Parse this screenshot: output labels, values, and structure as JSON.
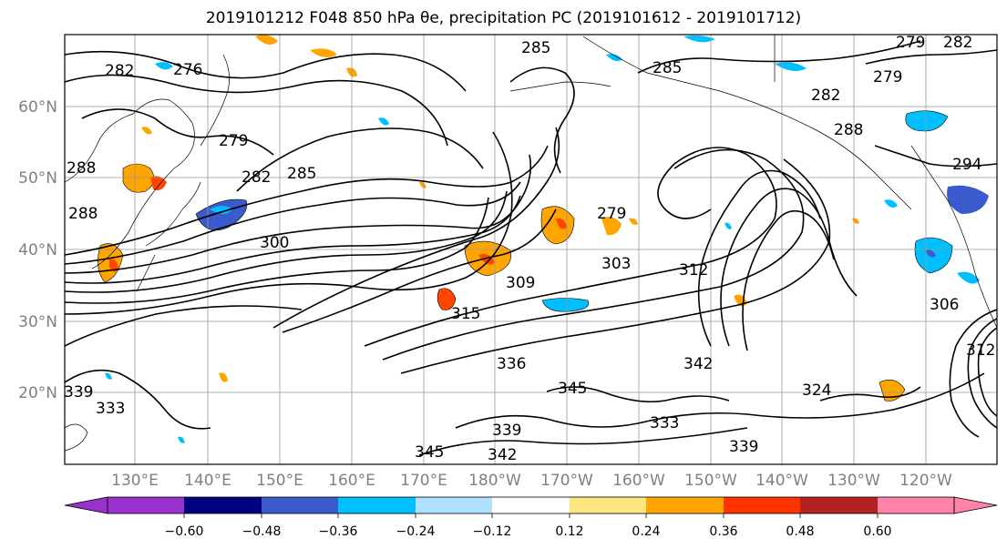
{
  "title": "2019101212 F048 850 hPa θe, precipitation PC (2019101612 - 2019101712)",
  "map": {
    "lat_labels": [
      "60°N",
      "50°N",
      "40°N",
      "30°N",
      "20°N"
    ],
    "lon_labels": [
      "130°E",
      "140°E",
      "150°E",
      "160°E",
      "170°E",
      "180°W",
      "170°W",
      "160°W",
      "150°W",
      "140°W",
      "130°W",
      "120°W"
    ],
    "contour_labels": [
      "282",
      "276",
      "285",
      "285",
      "279",
      "279",
      "282",
      "288",
      "294",
      "288",
      "288",
      "279",
      "282",
      "285",
      "300",
      "279",
      "303",
      "309",
      "315",
      "312",
      "336",
      "345",
      "342",
      "333",
      "324",
      "339",
      "339",
      "345",
      "342",
      "339",
      "333",
      "306",
      "312",
      "282"
    ],
    "fill_colors": {
      "light_blue": "#87cefa",
      "blue": "#00bfff",
      "dark_blue": "#3b5bcc",
      "yellow": "#ffe680",
      "orange": "#ffa500",
      "red_orange": "#ff4500"
    }
  },
  "colorbar": {
    "ticks": [
      "−0.60",
      "−0.48",
      "−0.36",
      "−0.24",
      "−0.12",
      "0.12",
      "0.24",
      "0.36",
      "0.48",
      "0.60"
    ],
    "colors": [
      "#9932cc",
      "#000080",
      "#3b5bcc",
      "#00bfff",
      "#b0e0ff",
      "#ffffff",
      "#ffe680",
      "#ffa500",
      "#ff3300",
      "#b22222",
      "#ff82a9"
    ],
    "under_color": "#9932cc",
    "over_color": "#ff82a9"
  }
}
